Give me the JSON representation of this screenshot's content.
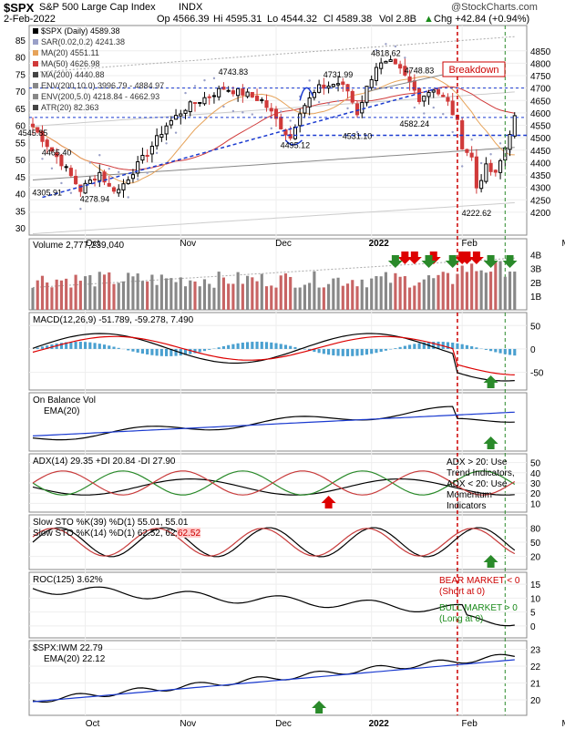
{
  "header": {
    "symbol": "$SPX",
    "name": "S&P 500 Large Cap Index",
    "exchange": "INDX",
    "date": "2-Feb-2022",
    "open": "Op 4566.39",
    "high": "Hi 4595.31",
    "low": "Lo 4544.32",
    "close": "Cl 4589.38",
    "volume": "Vol 2.8B",
    "change": "Chg +42.84 (+0.94%)",
    "change_arrow": "▲",
    "watermark": "@StockCharts.com"
  },
  "colors": {
    "up": "#000000",
    "down": "#d03a3a",
    "ma20": "#e6a35a",
    "ma50": "#d03a3a",
    "ma200": "#888888",
    "sar": "#9aa0c8",
    "trend": "#1a3ad0",
    "red_line": "#cc0000",
    "green_line": "#2a8a2a",
    "macd_hist": "#4aa0d0"
  },
  "chart_data": [
    {
      "type": "candlestick",
      "panel": "price",
      "legend": [
        {
          "label": "$SPX (Daily) 4589.38",
          "color": "#000000"
        },
        {
          "label": "SAR(0.02,0.2) 4241.38",
          "color": "#9aa0c8"
        },
        {
          "label": "MA(20) 4551.11",
          "color": "#e6a35a"
        },
        {
          "label": "MA(50) 4626.98",
          "color": "#d03a3a"
        },
        {
          "label": "MA(200) 4440.88",
          "color": "#444444"
        },
        {
          "label": "ENV(200,10.0) 3996.79 - 4884.97",
          "color": "#888888"
        },
        {
          "label": "ENV(200,5.0) 4218.84 - 4662.93",
          "color": "#888888"
        },
        {
          "label": "ATR(20) 82.363",
          "color": "#444444"
        }
      ],
      "ylim": [
        4130,
        4930
      ],
      "right_ticks": [
        4200,
        4250,
        4300,
        4350,
        4400,
        4450,
        4500,
        4550,
        4600,
        4650,
        4700,
        4750,
        4800,
        4850
      ],
      "left_ticks": [
        30,
        35,
        40,
        45,
        50,
        55,
        60,
        65,
        70,
        75,
        80,
        85
      ],
      "x_labels": [
        "Oct",
        "Nov",
        "Dec",
        "2022",
        "Feb",
        "Mar"
      ],
      "keypoints": [
        [
          0,
          4545
        ],
        [
          6,
          4400
        ],
        [
          10,
          4290
        ],
        [
          14,
          4360
        ],
        [
          16,
          4300
        ],
        [
          18,
          4290
        ],
        [
          24,
          4440
        ],
        [
          28,
          4550
        ],
        [
          32,
          4620
        ],
        [
          36,
          4660
        ],
        [
          40,
          4700
        ],
        [
          44,
          4680
        ],
        [
          48,
          4650
        ],
        [
          50,
          4600
        ],
        [
          53,
          4520
        ],
        [
          54,
          4500
        ],
        [
          56,
          4610
        ],
        [
          60,
          4700
        ],
        [
          64,
          4720
        ],
        [
          66,
          4690
        ],
        [
          68,
          4600
        ],
        [
          70,
          4700
        ],
        [
          72,
          4790
        ],
        [
          75,
          4800
        ],
        [
          77,
          4770
        ],
        [
          79,
          4720
        ],
        [
          81,
          4660
        ],
        [
          84,
          4700
        ],
        [
          87,
          4640
        ],
        [
          89,
          4560
        ],
        [
          90,
          4470
        ],
        [
          92,
          4420
        ],
        [
          93,
          4300
        ],
        [
          95,
          4380
        ],
        [
          97,
          4350
        ],
        [
          99,
          4460
        ],
        [
          101,
          4589
        ]
      ],
      "annotations": [
        {
          "text": "4545.85",
          "bar": 0,
          "price": 4545
        },
        {
          "text": "4465.40",
          "bar": 5,
          "price": 4465
        },
        {
          "text": "4305.91",
          "bar": 3,
          "price": 4305
        },
        {
          "text": "4278.94",
          "bar": 13,
          "price": 4278
        },
        {
          "text": "4743.83",
          "bar": 42,
          "price": 4743
        },
        {
          "text": "4731.99",
          "bar": 64,
          "price": 4731
        },
        {
          "text": "4818.62",
          "bar": 74,
          "price": 4818
        },
        {
          "text": "4748.83",
          "bar": 81,
          "price": 4748
        },
        {
          "text": "4582.24",
          "bar": 80,
          "price": 4582
        },
        {
          "text": "4495.12",
          "bar": 55,
          "price": 4495
        },
        {
          "text": "4531.10",
          "bar": 68,
          "price": 4531
        },
        {
          "text": "4222.62",
          "bar": 93,
          "price": 4222
        }
      ],
      "callout": "Breakdown",
      "support_levels": [
        4700,
        4582,
        4510
      ]
    },
    {
      "type": "bar",
      "panel": "volume",
      "label": "Volume 2,777,239,040",
      "ticks": [
        "4B",
        "3B",
        "2B",
        "1B"
      ],
      "ticks_values": [
        4,
        3,
        2,
        1
      ],
      "ylim": [
        0,
        4.5
      ]
    },
    {
      "type": "line",
      "panel": "macd",
      "label": "MACD(12,26,9) -51.789, -59.278, 7.490",
      "ticks": [
        "50",
        "0",
        "-50"
      ],
      "ticks_values": [
        50,
        0,
        -50
      ],
      "ylim": [
        -80,
        70
      ],
      "macd": -51.789,
      "signal": -59.278,
      "hist": 7.49
    },
    {
      "type": "line",
      "panel": "obv",
      "label": "On Balance Vol",
      "sub": "EMA(20)"
    },
    {
      "type": "line",
      "panel": "adx",
      "label": "ADX(14) 29.35 +DI 20.84 -DI 27.90",
      "ticks": [
        "50",
        "40",
        "30",
        "20",
        "10"
      ],
      "ticks_values": [
        50,
        40,
        30,
        20,
        10
      ],
      "ylim": [
        5,
        55
      ],
      "note": [
        "ADX > 20: Use",
        "Trend Indicators,",
        "ADX < 20: Use",
        "Momentum",
        "Indicators"
      ]
    },
    {
      "type": "line",
      "panel": "sto",
      "label": "Slow STO %K(39) %D(1) 55.01, 55.01",
      "label2": "Slow STO %K(14) %D(1) 62.52, 62.52",
      "label2_value": "62.52",
      "ticks": [
        "80",
        "50",
        "20"
      ],
      "ticks_values": [
        80,
        50,
        20
      ],
      "ylim": [
        0,
        100
      ]
    },
    {
      "type": "line",
      "panel": "roc",
      "label": "ROC(125) 3.62%",
      "ticks": [
        "15",
        "10",
        "5",
        "0"
      ],
      "ticks_values": [
        15,
        10,
        5,
        0
      ],
      "ylim": [
        -3,
        18
      ],
      "note_red": [
        "BEAR MARKET < 0",
        "(Short at 0)"
      ],
      "note_green": [
        "BULL MARKET > 0",
        "(Long at 0)"
      ]
    },
    {
      "type": "line",
      "panel": "ratio",
      "label": "$SPX:IWM 22.79",
      "sub": "EMA(20) 22.12",
      "ticks": [
        "23",
        "22",
        "21",
        "20"
      ],
      "ticks_values": [
        23,
        22,
        21,
        20
      ],
      "ylim": [
        19.3,
        23.3
      ]
    }
  ]
}
